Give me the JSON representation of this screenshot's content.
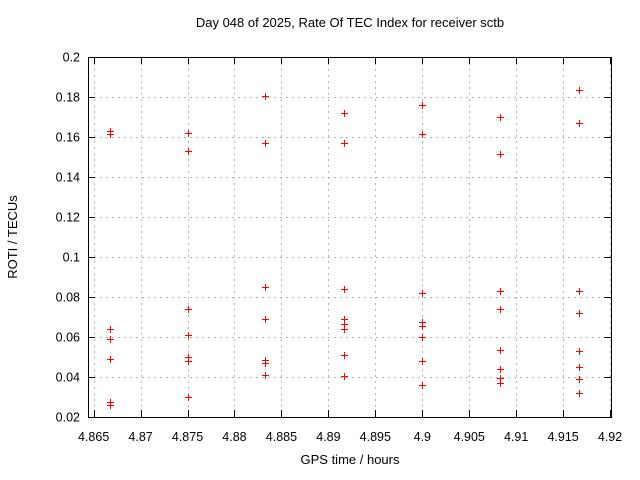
{
  "chart_data": {
    "type": "scatter",
    "title": "Day 048 of 2025, Rate Of TEC Index for receiver sctb",
    "xlabel": "GPS time / hours",
    "ylabel": "ROTI / TECUs",
    "xlim": [
      4.8644,
      4.9201
    ],
    "ylim": [
      0.02,
      0.2
    ],
    "xticks": [
      4.865,
      4.87,
      4.875,
      4.88,
      4.885,
      4.89,
      4.895,
      4.9,
      4.905,
      4.91,
      4.915,
      4.92
    ],
    "xtick_labels": [
      "4.865",
      "4.87",
      "4.875",
      "4.88",
      "4.885",
      "4.89",
      "4.895",
      "4.9",
      "4.905",
      "4.91",
      "4.915",
      "4.92"
    ],
    "yticks": [
      0.02,
      0.04,
      0.06,
      0.08,
      0.1,
      0.12,
      0.14,
      0.16,
      0.18,
      0.2
    ],
    "ytick_labels": [
      "0.02",
      "0.04",
      "0.06",
      "0.08",
      "0.1",
      "0.12",
      "0.14",
      "0.16",
      "0.18",
      "0.2"
    ],
    "grid": true,
    "legend": "none",
    "marker": "plus",
    "marker_color": "#ff0000",
    "grid_color": "#b4b4b4",
    "border_color": "#000000",
    "series": [
      {
        "name": "ROTI",
        "points": [
          [
            4.8667,
            0.163
          ],
          [
            4.8667,
            0.1615
          ],
          [
            4.8667,
            0.064
          ],
          [
            4.8667,
            0.059
          ],
          [
            4.8667,
            0.049
          ],
          [
            4.8667,
            0.0275
          ],
          [
            4.8667,
            0.026
          ],
          [
            4.875,
            0.162
          ],
          [
            4.875,
            0.153
          ],
          [
            4.875,
            0.074
          ],
          [
            4.875,
            0.061
          ],
          [
            4.875,
            0.05
          ],
          [
            4.875,
            0.048
          ],
          [
            4.875,
            0.03
          ],
          [
            4.8833,
            0.1805
          ],
          [
            4.8833,
            0.157
          ],
          [
            4.8833,
            0.085
          ],
          [
            4.8833,
            0.069
          ],
          [
            4.8833,
            0.0485
          ],
          [
            4.8833,
            0.047
          ],
          [
            4.8833,
            0.041
          ],
          [
            4.8917,
            0.172
          ],
          [
            4.8917,
            0.157
          ],
          [
            4.8917,
            0.084
          ],
          [
            4.8917,
            0.069
          ],
          [
            4.8917,
            0.0665
          ],
          [
            4.8917,
            0.064
          ],
          [
            4.8917,
            0.051
          ],
          [
            4.8917,
            0.0405
          ],
          [
            4.9,
            0.176
          ],
          [
            4.9,
            0.1615
          ],
          [
            4.9,
            0.082
          ],
          [
            4.9,
            0.0675
          ],
          [
            4.9,
            0.0655
          ],
          [
            4.9,
            0.06
          ],
          [
            4.9,
            0.048
          ],
          [
            4.9,
            0.036
          ],
          [
            4.9083,
            0.17
          ],
          [
            4.9083,
            0.1515
          ],
          [
            4.9083,
            0.083
          ],
          [
            4.9083,
            0.074
          ],
          [
            4.9083,
            0.0535
          ],
          [
            4.9083,
            0.044
          ],
          [
            4.9083,
            0.0395
          ],
          [
            4.9083,
            0.037
          ],
          [
            4.9167,
            0.1835
          ],
          [
            4.9167,
            0.167
          ],
          [
            4.9167,
            0.083
          ],
          [
            4.9167,
            0.072
          ],
          [
            4.9167,
            0.053
          ],
          [
            4.9167,
            0.045
          ],
          [
            4.9167,
            0.039
          ],
          [
            4.9167,
            0.032
          ]
        ]
      }
    ]
  }
}
